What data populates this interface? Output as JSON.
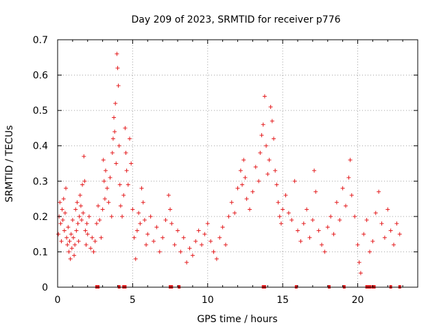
{
  "chart_data": {
    "type": "scatter",
    "title": "Day 209 of 2023, SRMTID for receiver p776",
    "xlabel": "GPS time / hours",
    "ylabel": "SRMTID / TECUs",
    "xlim": [
      0,
      24
    ],
    "ylim": [
      0,
      0.7
    ],
    "x_ticks": [
      0,
      5,
      10,
      15,
      20
    ],
    "x_tick_labels": [
      "0",
      "5",
      "10",
      "15",
      "20"
    ],
    "y_ticks": [
      0,
      0.1,
      0.2,
      0.3,
      0.4,
      0.5,
      0.6,
      0.7
    ],
    "y_tick_labels": [
      "0",
      "0.1",
      "0.2",
      "0.3",
      "0.4",
      "0.5",
      "0.6",
      "0.7"
    ],
    "grid": true,
    "marker": "plus",
    "series": [
      {
        "name": "SRMTID",
        "color": "#e41a1c",
        "points": [
          [
            0.05,
            0.15
          ],
          [
            0.1,
            0.2
          ],
          [
            0.15,
            0.24
          ],
          [
            0.2,
            0.18
          ],
          [
            0.25,
            0.13
          ],
          [
            0.3,
            0.22
          ],
          [
            0.35,
            0.19
          ],
          [
            0.4,
            0.25
          ],
          [
            0.45,
            0.16
          ],
          [
            0.5,
            0.21
          ],
          [
            0.55,
            0.28
          ],
          [
            0.6,
            0.14
          ],
          [
            0.65,
            0.12
          ],
          [
            0.7,
            0.17
          ],
          [
            0.75,
            0.1
          ],
          [
            0.8,
            0.13
          ],
          [
            0.85,
            0.08
          ],
          [
            0.9,
            0.15
          ],
          [
            0.95,
            0.11
          ],
          [
            1.0,
            0.19
          ],
          [
            1.05,
            0.14
          ],
          [
            1.1,
            0.09
          ],
          [
            1.15,
            0.12
          ],
          [
            1.2,
            0.22
          ],
          [
            1.25,
            0.16
          ],
          [
            1.3,
            0.24
          ],
          [
            1.35,
            0.18
          ],
          [
            1.4,
            0.13
          ],
          [
            1.45,
            0.2
          ],
          [
            1.5,
            0.26
          ],
          [
            1.55,
            0.23
          ],
          [
            1.6,
            0.19
          ],
          [
            1.65,
            0.29
          ],
          [
            1.7,
            0.21
          ],
          [
            1.75,
            0.37
          ],
          [
            1.8,
            0.3
          ],
          [
            1.85,
            0.16
          ],
          [
            1.9,
            0.12
          ],
          [
            1.95,
            0.18
          ],
          [
            2.0,
            0.15
          ],
          [
            2.1,
            0.2
          ],
          [
            2.2,
            0.11
          ],
          [
            2.3,
            0.14
          ],
          [
            2.4,
            0.1
          ],
          [
            2.5,
            0.13
          ],
          [
            2.6,
            0.18
          ],
          [
            2.7,
            0.23
          ],
          [
            2.8,
            0.19
          ],
          [
            2.9,
            0.14
          ],
          [
            3.0,
            0.22
          ],
          [
            3.05,
            0.36
          ],
          [
            3.1,
            0.3
          ],
          [
            3.15,
            0.25
          ],
          [
            3.2,
            0.33
          ],
          [
            3.3,
            0.28
          ],
          [
            3.4,
            0.24
          ],
          [
            3.5,
            0.31
          ],
          [
            3.6,
            0.2
          ],
          [
            3.65,
            0.38
          ],
          [
            3.7,
            0.42
          ],
          [
            3.75,
            0.48
          ],
          [
            3.8,
            0.44
          ],
          [
            3.85,
            0.52
          ],
          [
            3.9,
            0.35
          ],
          [
            3.95,
            0.66
          ],
          [
            4.0,
            0.62
          ],
          [
            4.05,
            0.57
          ],
          [
            4.1,
            0.4
          ],
          [
            4.15,
            0.29
          ],
          [
            4.2,
            0.23
          ],
          [
            4.3,
            0.2
          ],
          [
            4.4,
            0.26
          ],
          [
            4.5,
            0.45
          ],
          [
            4.55,
            0.38
          ],
          [
            4.6,
            0.33
          ],
          [
            4.7,
            0.29
          ],
          [
            4.8,
            0.42
          ],
          [
            4.9,
            0.35
          ],
          [
            5.0,
            0.22
          ],
          [
            5.1,
            0.14
          ],
          [
            5.2,
            0.08
          ],
          [
            5.3,
            0.16
          ],
          [
            5.4,
            0.21
          ],
          [
            5.5,
            0.18
          ],
          [
            5.6,
            0.28
          ],
          [
            5.7,
            0.24
          ],
          [
            5.8,
            0.19
          ],
          [
            5.9,
            0.12
          ],
          [
            6.0,
            0.15
          ],
          [
            6.2,
            0.2
          ],
          [
            6.4,
            0.13
          ],
          [
            6.6,
            0.17
          ],
          [
            6.8,
            0.1
          ],
          [
            7.0,
            0.14
          ],
          [
            7.2,
            0.19
          ],
          [
            7.4,
            0.26
          ],
          [
            7.5,
            0.22
          ],
          [
            7.6,
            0.18
          ],
          [
            7.8,
            0.12
          ],
          [
            8.0,
            0.16
          ],
          [
            8.2,
            0.1
          ],
          [
            8.4,
            0.14
          ],
          [
            8.6,
            0.07
          ],
          [
            8.8,
            0.11
          ],
          [
            9.0,
            0.09
          ],
          [
            9.2,
            0.13
          ],
          [
            9.4,
            0.16
          ],
          [
            9.6,
            0.12
          ],
          [
            9.8,
            0.15
          ],
          [
            10.0,
            0.18
          ],
          [
            10.2,
            0.13
          ],
          [
            10.4,
            0.1
          ],
          [
            10.6,
            0.08
          ],
          [
            10.8,
            0.14
          ],
          [
            11.0,
            0.17
          ],
          [
            11.2,
            0.12
          ],
          [
            11.4,
            0.2
          ],
          [
            11.6,
            0.24
          ],
          [
            11.8,
            0.21
          ],
          [
            12.0,
            0.28
          ],
          [
            12.2,
            0.33
          ],
          [
            12.3,
            0.29
          ],
          [
            12.4,
            0.36
          ],
          [
            12.5,
            0.31
          ],
          [
            12.6,
            0.25
          ],
          [
            12.8,
            0.22
          ],
          [
            13.0,
            0.27
          ],
          [
            13.2,
            0.34
          ],
          [
            13.4,
            0.3
          ],
          [
            13.5,
            0.38
          ],
          [
            13.6,
            0.43
          ],
          [
            13.7,
            0.46
          ],
          [
            13.8,
            0.54
          ],
          [
            13.9,
            0.4
          ],
          [
            14.0,
            0.32
          ],
          [
            14.1,
            0.36
          ],
          [
            14.2,
            0.51
          ],
          [
            14.3,
            0.47
          ],
          [
            14.4,
            0.42
          ],
          [
            14.5,
            0.33
          ],
          [
            14.6,
            0.29
          ],
          [
            14.7,
            0.24
          ],
          [
            14.8,
            0.2
          ],
          [
            14.9,
            0.18
          ],
          [
            15.0,
            0.22
          ],
          [
            15.2,
            0.26
          ],
          [
            15.4,
            0.21
          ],
          [
            15.6,
            0.19
          ],
          [
            15.8,
            0.3
          ],
          [
            16.0,
            0.16
          ],
          [
            16.2,
            0.13
          ],
          [
            16.4,
            0.18
          ],
          [
            16.6,
            0.22
          ],
          [
            16.8,
            0.14
          ],
          [
            17.0,
            0.19
          ],
          [
            17.1,
            0.33
          ],
          [
            17.2,
            0.27
          ],
          [
            17.4,
            0.16
          ],
          [
            17.6,
            0.12
          ],
          [
            17.8,
            0.1
          ],
          [
            18.0,
            0.17
          ],
          [
            18.2,
            0.2
          ],
          [
            18.4,
            0.15
          ],
          [
            18.6,
            0.24
          ],
          [
            18.8,
            0.19
          ],
          [
            19.0,
            0.28
          ],
          [
            19.2,
            0.23
          ],
          [
            19.4,
            0.31
          ],
          [
            19.5,
            0.36
          ],
          [
            19.6,
            0.26
          ],
          [
            19.8,
            0.2
          ],
          [
            20.0,
            0.12
          ],
          [
            20.1,
            0.07
          ],
          [
            20.2,
            0.04
          ],
          [
            20.4,
            0.15
          ],
          [
            20.6,
            0.19
          ],
          [
            20.8,
            0.1
          ],
          [
            21.0,
            0.13
          ],
          [
            21.2,
            0.21
          ],
          [
            21.4,
            0.27
          ],
          [
            21.6,
            0.18
          ],
          [
            21.8,
            0.14
          ],
          [
            22.0,
            0.22
          ],
          [
            22.2,
            0.16
          ],
          [
            22.4,
            0.12
          ],
          [
            22.6,
            0.18
          ],
          [
            22.8,
            0.15
          ]
        ]
      }
    ],
    "gap_markers_x": [
      2.6,
      2.7,
      4.1,
      4.4,
      4.5,
      7.5,
      7.6,
      8.1,
      13.7,
      13.8,
      15.9,
      18.1,
      19.1,
      20.6,
      20.7,
      20.8,
      21.0,
      21.1,
      22.2,
      22.8
    ]
  }
}
